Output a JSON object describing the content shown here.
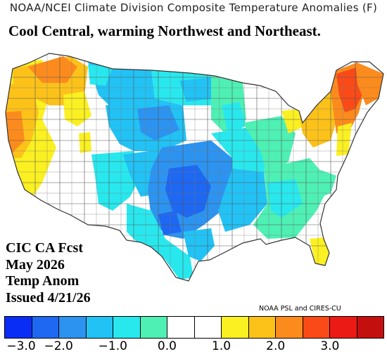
{
  "header": {
    "title": "NOAA/NCEI Climate Division Composite Temperature Anomalies (F)",
    "subtitle": "Cool Central, warming Northwest and Northeast."
  },
  "info": {
    "line1": "CIC CA Fcst",
    "line2": "May 2026",
    "line3": "Temp Anom",
    "line4": "Issued 4/21/26"
  },
  "credit": "NOAA PSL and CIRES-CU",
  "legend": {
    "colors": [
      "#0a2df5",
      "#1e68f2",
      "#2d93f0",
      "#22c2f5",
      "#28e8ee",
      "#4ef0b4",
      "#ffffff",
      "#ffffff",
      "#fbf021",
      "#fcc21a",
      "#fc8b1e",
      "#fa4a18",
      "#ec1a14",
      "#c40f0f"
    ],
    "ticks": [
      "−3.0",
      "−2.0",
      "−1.0",
      "0.0",
      "1.0",
      "2.0",
      "3.0"
    ]
  },
  "map": {
    "palette": {
      "blue_deep": "#1e68f2",
      "blue": "#2d93f0",
      "cyan": "#22c2f5",
      "aqua": "#28e8ee",
      "seafoam": "#4ef0b4",
      "white": "#ffffff",
      "yellow": "#fbf021",
      "gold": "#fcc21a",
      "orange": "#fc8b1e",
      "red_orange": "#fa4a18"
    }
  }
}
